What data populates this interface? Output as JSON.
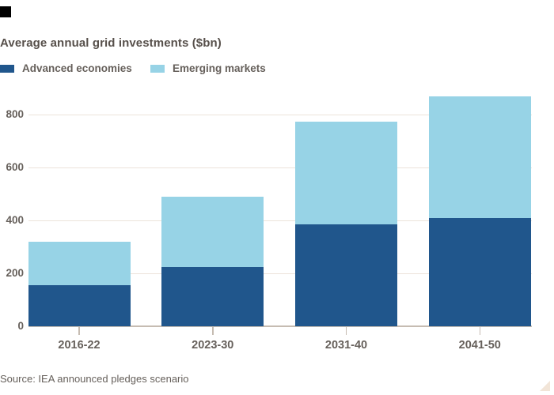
{
  "branding": {
    "logo_square_color": "#000000",
    "corner_triangle_color": "#f2e5d8"
  },
  "title": "Average annual grid investments ($bn)",
  "legend": [
    {
      "label": "Advanced economies",
      "color": "#20568c"
    },
    {
      "label": "Emerging markets",
      "color": "#97d3e6"
    }
  ],
  "source": "Source: IEA announced pledges scenario",
  "colors": {
    "background": "#ffffff",
    "title_text": "#57504b",
    "label_text": "#66605b",
    "gridline": "#ece3da",
    "axis_line": "#c6bcb2",
    "advanced_economies": "#20568c",
    "emerging_markets": "#97d3e6"
  },
  "chart_data": {
    "type": "bar",
    "stacked": true,
    "title": "Average annual grid investments ($bn)",
    "xlabel": "",
    "ylabel": "",
    "categories": [
      "2016-22",
      "2023-30",
      "2031-40",
      "2041-50"
    ],
    "series": [
      {
        "name": "Advanced economies",
        "color": "#20568c",
        "values": [
          155,
          225,
          385,
          410
        ]
      },
      {
        "name": "Emerging markets",
        "color": "#97d3e6",
        "values": [
          165,
          265,
          390,
          460
        ]
      }
    ],
    "stack_totals": [
      320,
      490,
      775,
      870
    ],
    "yticks": [
      0,
      200,
      400,
      600,
      800
    ],
    "ylim": [
      0,
      900
    ],
    "grid": true,
    "legend_position": "top-left"
  }
}
